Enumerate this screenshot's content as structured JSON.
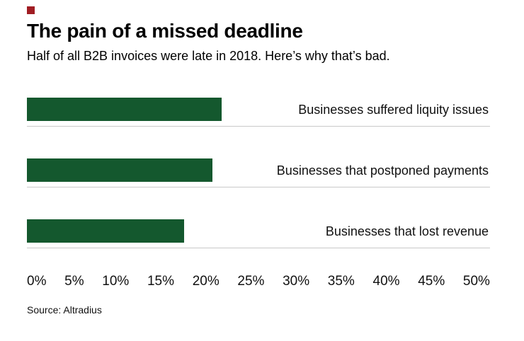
{
  "brand": {
    "accent_color": "#a01d23"
  },
  "header": {
    "title": "The pain of a missed deadline",
    "subtitle": "Half of all B2B invoices were late in 2018. Here’s why that’s bad."
  },
  "source": "Source: Altradius",
  "chart_data": {
    "type": "bar",
    "orientation": "horizontal",
    "title": "The pain of a missed deadline",
    "subtitle": "Half of all B2B invoices were late in 2018. Here’s why that’s bad.",
    "categories": [
      "Businesses suffered liquity issues",
      "Businesses that postponed payments",
      "Businesses that lost revenue"
    ],
    "values": [
      21,
      20,
      17
    ],
    "unit": "%",
    "xlim": [
      0,
      50
    ],
    "x_ticks": [
      "0%",
      "5%",
      "10%",
      "15%",
      "20%",
      "25%",
      "30%",
      "35%",
      "40%",
      "45%",
      "50%"
    ],
    "bar_color": "#14582e",
    "grid": false,
    "legend": false,
    "value_labels": false,
    "source": "Source: Altradius"
  }
}
